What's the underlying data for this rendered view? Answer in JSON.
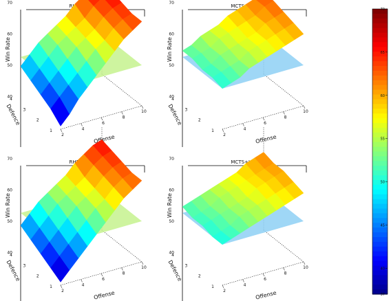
{
  "chart_data": [
    {
      "type": "surface",
      "title": "RHEA+H3",
      "xlabel": "Offense",
      "ylabel": "Defence",
      "zlabel": "Win Rate",
      "xticks": [
        "2",
        "4",
        "6",
        "8",
        "10"
      ],
      "yticks": [
        "1",
        "2",
        "3",
        "4"
      ],
      "zticks": [
        "40",
        "50",
        "60",
        "70"
      ],
      "zlim": [
        37,
        70
      ],
      "plane_level": 50,
      "plane_color": "#c6f28e",
      "grid": [
        [
          38,
          41,
          45,
          48,
          51,
          54,
          57,
          60,
          62,
          64
        ],
        [
          41,
          44,
          47,
          50,
          53,
          56,
          58,
          61,
          63,
          64
        ],
        [
          43,
          46,
          49,
          52,
          55,
          57,
          59,
          62,
          64,
          65
        ],
        [
          45,
          48,
          51,
          54,
          56,
          58,
          60,
          63,
          65,
          66
        ],
        [
          47,
          50,
          53,
          55,
          57,
          59,
          62,
          64,
          66,
          67
        ]
      ]
    },
    {
      "type": "surface",
      "title": "MCTS+H3",
      "xlabel": "Offense",
      "ylabel": "Defence",
      "zlabel": "Win Rate",
      "xticks": [
        "2",
        "4",
        "6",
        "8",
        "10"
      ],
      "yticks": [
        "1",
        "2",
        "3",
        "4"
      ],
      "zticks": [
        "40",
        "50",
        "60",
        "70"
      ],
      "zlim": [
        37,
        70
      ],
      "plane_level": 50,
      "plane_color": "#8ed0f5",
      "grid": [
        [
          50,
          51,
          52,
          54,
          55,
          56,
          57,
          58,
          59,
          60
        ],
        [
          51,
          52,
          53,
          54,
          56,
          57,
          58,
          59,
          60,
          61
        ],
        [
          51,
          52,
          54,
          55,
          56,
          57,
          58,
          60,
          61,
          62
        ],
        [
          52,
          53,
          54,
          56,
          57,
          58,
          59,
          60,
          62,
          63
        ],
        [
          52,
          53,
          55,
          56,
          57,
          59,
          60,
          61,
          62,
          63
        ]
      ]
    },
    {
      "type": "surface",
      "title": "RHEA+H0",
      "xlabel": "Offense",
      "ylabel": "Defence",
      "zlabel": "Win Rate",
      "xticks": [
        "2",
        "4",
        "6",
        "8",
        "10"
      ],
      "yticks": [
        "1",
        "2",
        "3",
        "4"
      ],
      "zticks": [
        "40",
        "50",
        "60",
        "70"
      ],
      "zlim": [
        37,
        70
      ],
      "plane_level": 50,
      "plane_color": "#c6f28e",
      "grid": [
        [
          38,
          41,
          44,
          47,
          50,
          53,
          56,
          59,
          61,
          63
        ],
        [
          40,
          43,
          46,
          49,
          52,
          55,
          57,
          60,
          62,
          63
        ],
        [
          42,
          45,
          48,
          51,
          54,
          56,
          58,
          61,
          63,
          64
        ],
        [
          44,
          47,
          50,
          53,
          55,
          57,
          59,
          62,
          64,
          65
        ],
        [
          46,
          49,
          52,
          54,
          56,
          58,
          61,
          63,
          65,
          66
        ]
      ]
    },
    {
      "type": "surface",
      "title": "MCTS+H0",
      "xlabel": "Offense",
      "ylabel": "Defence",
      "zlabel": "Win Rate",
      "xticks": [
        "2",
        "4",
        "6",
        "8",
        "10"
      ],
      "yticks": [
        "1",
        "2",
        "3",
        "4"
      ],
      "zticks": [
        "40",
        "50",
        "60",
        "70"
      ],
      "zlim": [
        37,
        70
      ],
      "plane_level": 50,
      "plane_color": "#8ed0f5",
      "grid": [
        [
          50,
          51,
          52,
          53,
          54,
          55,
          56,
          57,
          58,
          59
        ],
        [
          50,
          51,
          52,
          54,
          55,
          56,
          57,
          58,
          59,
          60
        ],
        [
          51,
          52,
          53,
          54,
          55,
          56,
          58,
          59,
          60,
          61
        ],
        [
          51,
          52,
          53,
          55,
          56,
          57,
          58,
          59,
          60,
          61
        ],
        [
          52,
          53,
          54,
          55,
          56,
          57,
          58,
          60,
          61,
          62
        ]
      ]
    }
  ],
  "colorbar": {
    "colormap": "jet",
    "min": 37,
    "max": 70,
    "ticks": [
      "70",
      "65",
      "60",
      "55",
      "50",
      "45",
      "40",
      "37"
    ]
  }
}
